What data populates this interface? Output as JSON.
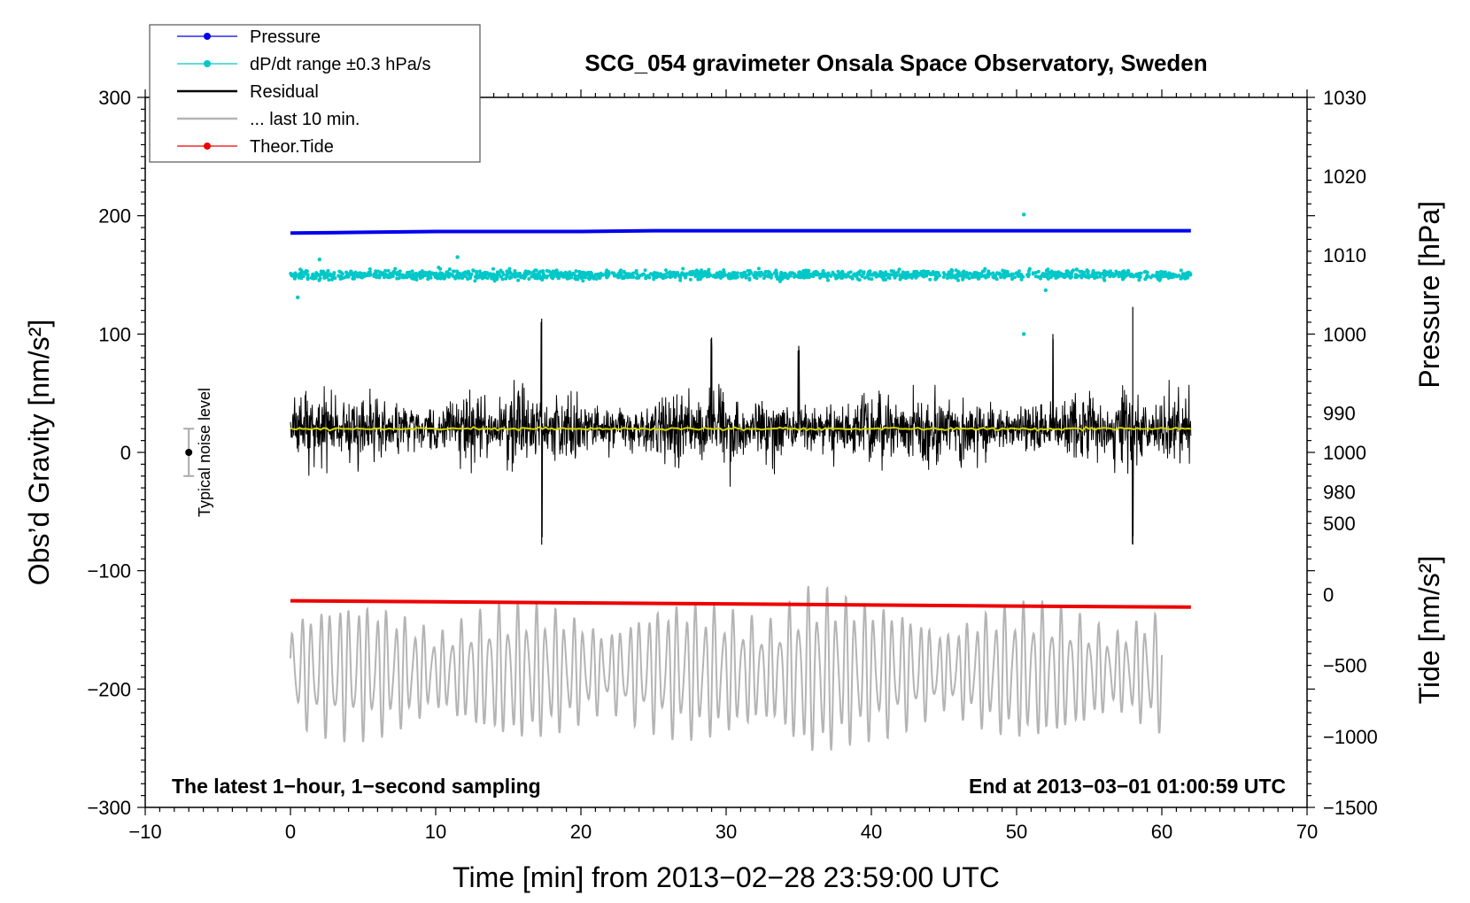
{
  "chart_data": {
    "type": "line",
    "title": "SCG_054 gravimeter Onsala Space Observatory, Sweden",
    "xlabel": "Time [min] from 2013−02−28 23:59:00 UTC",
    "ylabel_left": "Obs’d Gravity [nm/s²]",
    "ylabel_right_pressure": "Pressure [hPa]",
    "ylabel_right_tide": "Tide [nm/s²]",
    "xlim": [
      -10,
      70
    ],
    "ylim": [
      -300,
      300
    ],
    "x_ticks": [
      {
        "value": -10,
        "label": "−10"
      },
      {
        "value": 0,
        "label": "0"
      },
      {
        "value": 10,
        "label": "10"
      },
      {
        "value": 20,
        "label": "20"
      },
      {
        "value": 30,
        "label": "30"
      },
      {
        "value": 40,
        "label": "40"
      },
      {
        "value": 50,
        "label": "50"
      },
      {
        "value": 60,
        "label": "60"
      },
      {
        "value": 70,
        "label": "70"
      }
    ],
    "y_ticks_left": [
      {
        "value": 300,
        "label": "300"
      },
      {
        "value": 200,
        "label": "200"
      },
      {
        "value": 100,
        "label": "100"
      },
      {
        "value": 0,
        "label": "0"
      },
      {
        "value": -100,
        "label": "−100"
      },
      {
        "value": -200,
        "label": "−200"
      },
      {
        "value": -300,
        "label": "−300"
      }
    ],
    "y_ticks_pressure": [
      {
        "value": 1030,
        "label": "1030"
      },
      {
        "value": 1020,
        "label": "1020"
      },
      {
        "value": 1010,
        "label": "1010"
      },
      {
        "value": 1000,
        "label": "1000"
      },
      {
        "value": 990,
        "label": "990"
      },
      {
        "value": 980,
        "label": "980"
      }
    ],
    "y_ticks_tide": [
      {
        "value": 1000,
        "label": "1000"
      },
      {
        "value": 500,
        "label": "500"
      },
      {
        "value": 0,
        "label": "0"
      },
      {
        "value": -500,
        "label": "−500"
      },
      {
        "value": -1000,
        "label": "−1000"
      },
      {
        "value": -1500,
        "label": "−1500"
      }
    ],
    "pressure_axis_range": [
      970,
      1030
    ],
    "tide_axis_range": [
      -1500,
      1000
    ],
    "legend": [
      {
        "label": "Pressure",
        "color": "#0000ee",
        "marker": true
      },
      {
        "label": "dP/dt range ±0.3 hPa/s",
        "color": "#00c8c8",
        "marker": true
      },
      {
        "label": "Residual",
        "color": "#000000",
        "marker": false
      },
      {
        "label": "... last 10 min.",
        "color": "#b4b4b4",
        "marker": false
      },
      {
        "label": "Theor.Tide",
        "color": "#ee0000",
        "marker": true
      }
    ],
    "legend_position": "top-left",
    "series": [
      {
        "name": "Pressure",
        "axis": "pressure",
        "color": "#0000ee",
        "x": [
          0,
          5,
          10,
          15,
          20,
          25,
          30,
          35,
          40,
          45,
          50,
          55,
          62
        ],
        "values": [
          1012.8,
          1012.9,
          1013.0,
          1013.0,
          1013.0,
          1013.1,
          1013.1,
          1013.1,
          1013.1,
          1013.1,
          1013.1,
          1013.1,
          1013.1
        ]
      },
      {
        "name": "dP/dt range ±0.3 hPa/s",
        "axis": "left",
        "color": "#00c8c8",
        "x_range": [
          0,
          62
        ],
        "center": 150,
        "spread": 5,
        "outliers": [
          [
            2,
            163
          ],
          [
            11.5,
            165
          ],
          [
            50.5,
            100
          ],
          [
            50.5,
            201
          ],
          [
            52,
            137
          ],
          [
            0.5,
            131
          ]
        ]
      },
      {
        "name": "Residual",
        "axis": "left",
        "color": "#000000",
        "x_range": [
          0,
          62
        ],
        "center": 20,
        "typical_amplitude": 40,
        "peaks": [
          [
            17.3,
            113
          ],
          [
            17.3,
            -78
          ],
          [
            58,
            123
          ],
          [
            58,
            -78
          ],
          [
            52.5,
            100
          ],
          [
            35,
            90
          ],
          [
            29,
            97
          ]
        ]
      },
      {
        "name": "Residual mean",
        "axis": "left",
        "color": "#d4d400",
        "x": [
          0,
          10,
          20,
          30,
          40,
          50,
          62
        ],
        "values": [
          20,
          20,
          20,
          20,
          20,
          20,
          20
        ]
      },
      {
        "name": "... last 10 min.",
        "axis": "left",
        "color": "#b4b4b4",
        "x_range": [
          0,
          60
        ],
        "center": -185,
        "typical_amplitude": 45,
        "peaks": [
          [
            1.2,
            -275
          ],
          [
            35.5,
            -82
          ],
          [
            36,
            -285
          ],
          [
            8,
            -270
          ],
          [
            58.7,
            -258
          ]
        ]
      },
      {
        "name": "Theor.Tide",
        "axis": "tide",
        "color": "#ee0000",
        "x": [
          0,
          10,
          20,
          30,
          40,
          50,
          62
        ],
        "values": [
          -45,
          -52,
          -60,
          -67,
          -75,
          -82,
          -90
        ]
      }
    ],
    "noise_indicator": {
      "label": "Typical noise level",
      "x": -7,
      "center": 0,
      "half_range": 20
    },
    "annotations": {
      "bottom_left": "The latest 1−hour, 1−second sampling",
      "bottom_right": "End at 2013−03−01 01:00:59 UTC"
    }
  }
}
